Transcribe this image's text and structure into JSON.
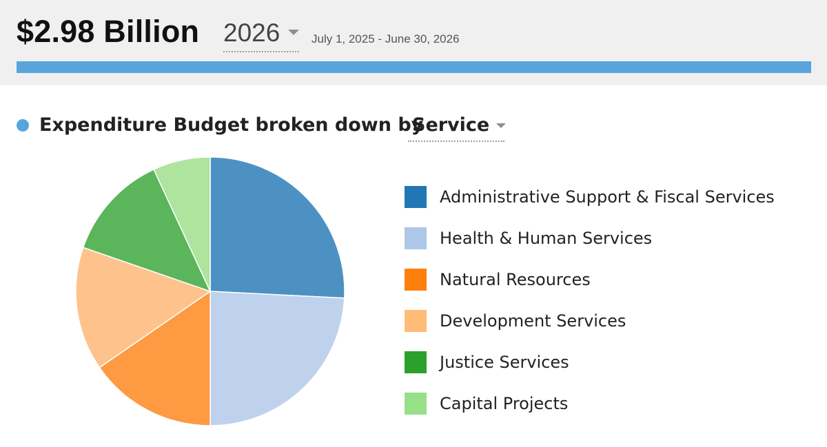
{
  "header": {
    "total": "$2.98 Billion",
    "year": "2026",
    "date_range": "July 1, 2025 - June 30, 2026",
    "bar_color": "#58a5dc"
  },
  "section": {
    "title": "Expenditure Budget broken down by",
    "breakdown": "Service",
    "dot_color": "#58a5dc"
  },
  "chart_data": {
    "type": "pie",
    "title": "",
    "series": [
      {
        "categories": [
          "Administrative Support & Fiscal Services",
          "Health & Human Services",
          "Natural Resources",
          "Development Services",
          "Justice Services",
          "Capital Projects"
        ],
        "values": [
          25.8,
          24.2,
          15.4,
          14.9,
          12.8,
          6.9
        ],
        "unit": "percent of total"
      }
    ],
    "slice_colors": [
      "#4d91c3",
      "#bed2ed",
      "#fd9a42",
      "#fec38d",
      "#5bb55b",
      "#aee49e"
    ],
    "legend_colors": [
      "#2177b4",
      "#aec7e8",
      "#ff7f0e",
      "#ffbb78",
      "#2ca02c",
      "#98df8a"
    ],
    "start_angle": "12 o'clock, clockwise",
    "legend_position": "right"
  }
}
